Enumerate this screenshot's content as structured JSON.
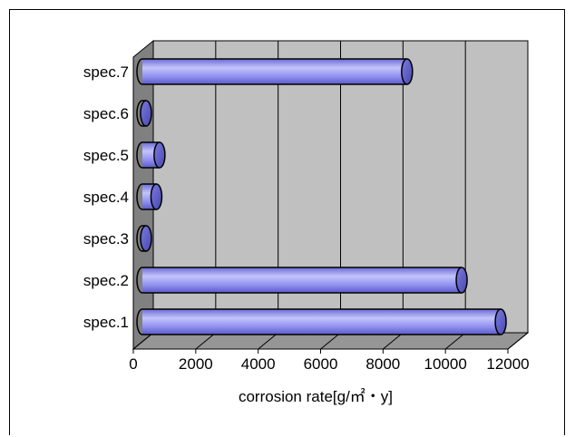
{
  "chart_data": {
    "type": "bar",
    "orientation": "horizontal",
    "categories": [
      "spec.1",
      "spec.2",
      "spec.3",
      "spec.4",
      "spec.5",
      "spec.6",
      "spec.7"
    ],
    "values": [
      11450,
      10200,
      10,
      420,
      520,
      10,
      8450
    ],
    "title": "",
    "xlabel": "corrosion rate[g/㎡・y]",
    "ylabel": "",
    "xlim": [
      0,
      12000
    ],
    "x_ticks": [
      0,
      2000,
      4000,
      6000,
      8000,
      10000,
      12000
    ],
    "x_tick_labels": [
      "0",
      "2000",
      "4000",
      "6000",
      "8000",
      "10000",
      "12000"
    ],
    "grid": true,
    "legend": "none",
    "style": "3d-cylinder"
  },
  "colors": {
    "bar_fill": "#8f8fef",
    "bar_highlight": "#c4c4fb",
    "bar_shadow": "#5a5ac8",
    "bar_outline": "#000000",
    "wall": "#c0c0c0",
    "side_wall": "#808080",
    "floor": "#969696",
    "gridline": "#000000"
  }
}
